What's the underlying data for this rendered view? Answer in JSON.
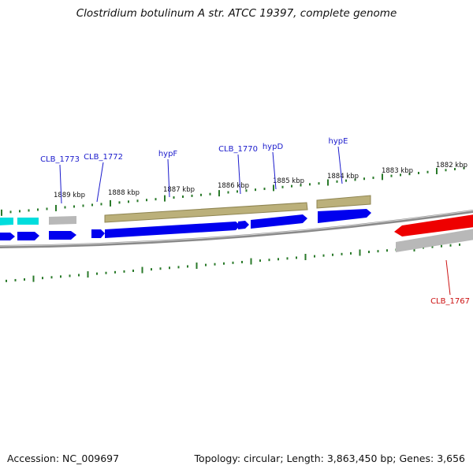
{
  "title": "Clostridium botulinum A str. ATCC 19397, complete genome",
  "accession": {
    "label": "Accession:",
    "value": "NC_009697"
  },
  "topology": {
    "topology_label": "Topology:",
    "topology": "circular",
    "length_label": "Length:",
    "length": "3,863,450 bp",
    "genes_label": "Genes:",
    "genes": "3,656"
  },
  "colors": {
    "forward_cds": "#0000ee",
    "reverse_cds": "#ee0000",
    "other_cds": "#00dddd",
    "hypothetical_blocks": "#bbb07a",
    "grey_blocks": "#b8b8b8",
    "forward_label": "#1a1acc",
    "reverse_label": "#cc1111",
    "ticks": "#2a7a2a",
    "backbone": "#8a8a8a"
  },
  "ticks": [
    {
      "kbp": 1882,
      "label": "1882 kbp"
    },
    {
      "kbp": 1883,
      "label": "1883 kbp"
    },
    {
      "kbp": 1884,
      "label": "1884 kbp"
    },
    {
      "kbp": 1885,
      "label": "1885 kbp"
    },
    {
      "kbp": 1886,
      "label": "1886 kbp"
    },
    {
      "kbp": 1887,
      "label": "1887 kbp"
    },
    {
      "kbp": 1888,
      "label": "1888 kbp"
    },
    {
      "kbp": 1889,
      "label": "1889 kbp"
    }
  ],
  "gene_labels": [
    {
      "name": "CLB_1773",
      "strand": "forward"
    },
    {
      "name": "CLB_1772",
      "strand": "forward"
    },
    {
      "name": "hypF",
      "strand": "forward"
    },
    {
      "name": "CLB_1770",
      "strand": "forward"
    },
    {
      "name": "hypD",
      "strand": "forward"
    },
    {
      "name": "hypE",
      "strand": "forward"
    },
    {
      "name": "CLB_1767",
      "strand": "reverse"
    }
  ]
}
